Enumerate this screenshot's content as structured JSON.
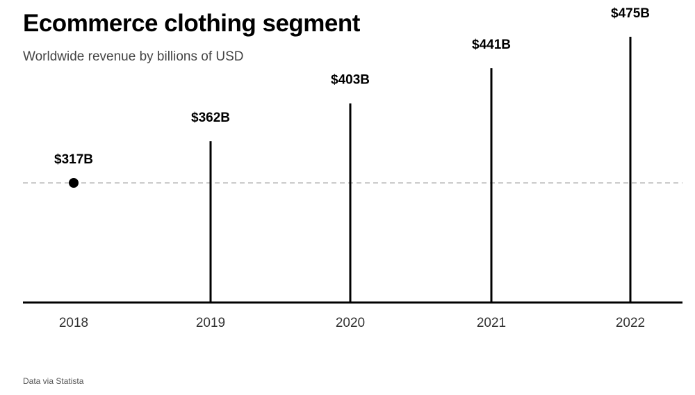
{
  "title": "Ecommerce clothing segment",
  "subtitle": "Worldwide revenue by billions of USD",
  "source": "Data via Statista",
  "colors": {
    "mark": "#000000",
    "baseline_ref": "#aaaaaa",
    "tick_text": "#333333"
  },
  "chart_data": {
    "type": "bar",
    "categories": [
      "2018",
      "2019",
      "2020",
      "2021",
      "2022"
    ],
    "values": [
      317,
      362,
      403,
      441,
      475
    ],
    "data_labels": [
      "$317B",
      "$362B",
      "$403B",
      "$441B",
      "$475B"
    ],
    "title": "Ecommerce clothing segment",
    "subtitle": "Worldwide revenue by billions of USD",
    "xlabel": "",
    "ylabel": "",
    "baseline_value": 317,
    "baseline_style": "dashed reference line at the 2018 value",
    "first_point_marker": "dot",
    "grid": false,
    "legend": "none"
  }
}
